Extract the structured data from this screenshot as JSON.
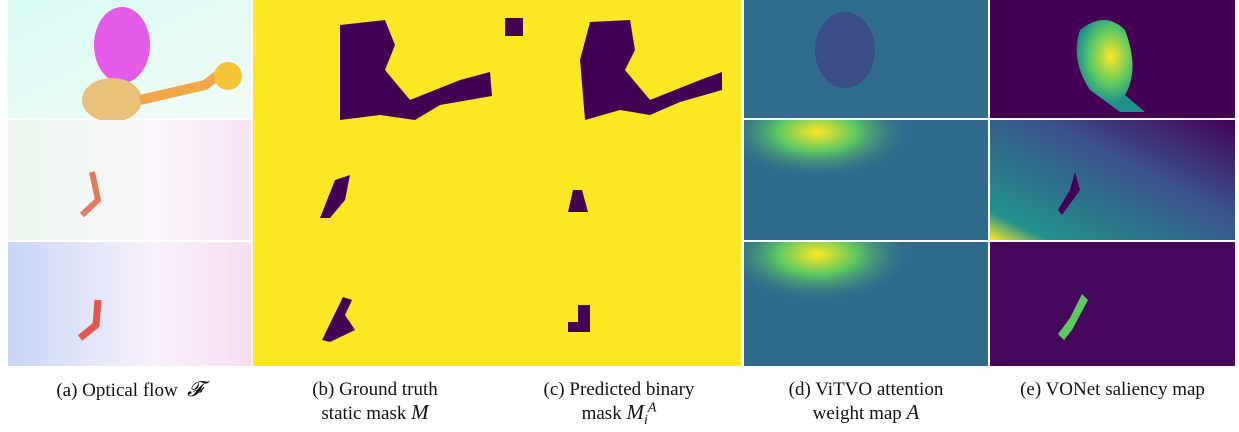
{
  "figure": {
    "captions": [
      {
        "lines": [
          "(a) Optical flow"
        ],
        "math": "𝓕"
      },
      {
        "lines": [
          "(b) Ground truth",
          "static mask"
        ],
        "math": "M"
      },
      {
        "lines": [
          "(c) Predicted binary",
          "mask"
        ],
        "math": "M",
        "sub": "i",
        "sup": "A"
      },
      {
        "lines": [
          "(d) ViTVO attention",
          "weight map"
        ],
        "math": "A"
      },
      {
        "lines": [
          "(e) VONet saliency map"
        ]
      }
    ]
  }
}
